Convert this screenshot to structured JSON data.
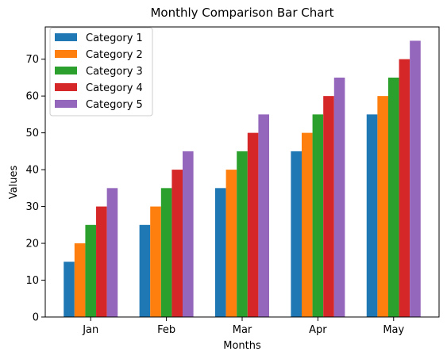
{
  "chart_data": {
    "type": "bar",
    "title": "Monthly Comparison Bar Chart",
    "xlabel": "Months",
    "ylabel": "Values",
    "categories": [
      "Jan",
      "Feb",
      "Mar",
      "Apr",
      "May"
    ],
    "series": [
      {
        "name": "Category 1",
        "values": [
          15,
          25,
          35,
          45,
          55
        ],
        "color": "#1f77b4"
      },
      {
        "name": "Category 2",
        "values": [
          20,
          30,
          40,
          50,
          60
        ],
        "color": "#ff7f0e"
      },
      {
        "name": "Category 3",
        "values": [
          25,
          35,
          45,
          55,
          65
        ],
        "color": "#2ca02c"
      },
      {
        "name": "Category 4",
        "values": [
          30,
          40,
          50,
          60,
          70
        ],
        "color": "#d62728"
      },
      {
        "name": "Category 5",
        "values": [
          35,
          45,
          55,
          65,
          75
        ],
        "color": "#9467bd"
      }
    ],
    "ylim": [
      0,
      78.75
    ],
    "yticks": [
      0,
      10,
      20,
      30,
      40,
      50,
      60,
      70
    ],
    "legend": "top-left",
    "grid": false
  }
}
